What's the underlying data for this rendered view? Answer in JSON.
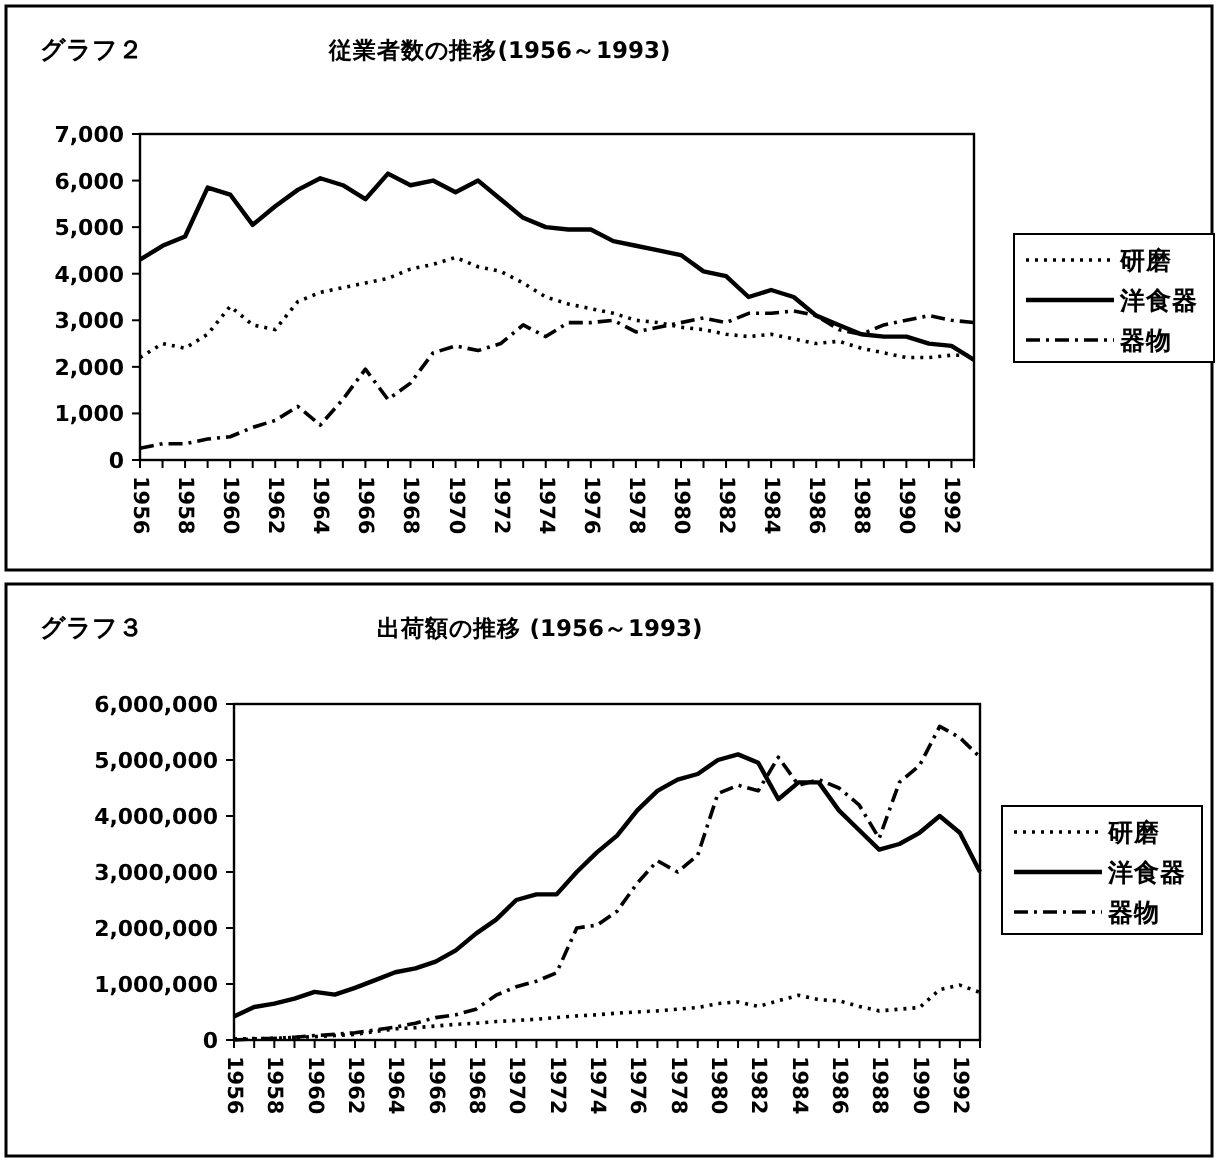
{
  "chart_data": [
    {
      "type": "line",
      "title": "従業者数の推移(1956～1993)",
      "annotations": [
        "グラフ２"
      ],
      "categories": [
        "1956",
        null,
        "1958",
        null,
        "1960",
        null,
        "1962",
        null,
        "1964",
        null,
        "1966",
        null,
        "1968",
        null,
        "1970",
        null,
        "1972",
        null,
        "1974",
        null,
        "1976",
        null,
        "1978",
        null,
        "1980",
        null,
        "1982",
        null,
        "1984",
        null,
        "1986",
        null,
        "1988",
        null,
        "1990",
        null,
        "1992",
        null
      ],
      "ylim": [
        0,
        7000
      ],
      "yticks": [
        {
          "value": 0,
          "label": "0"
        },
        {
          "value": 1000,
          "label": "1,000"
        },
        {
          "value": 2000,
          "label": "2,000"
        },
        {
          "value": 3000,
          "label": "3,000"
        },
        {
          "value": 4000,
          "label": "4,000"
        },
        {
          "value": 5000,
          "label": "5,000"
        },
        {
          "value": 6000,
          "label": "6,000"
        },
        {
          "value": 7000,
          "label": "7,000"
        }
      ],
      "legend": "right",
      "grid": false,
      "series": [
        {
          "name": "研磨",
          "color": "#000000",
          "line_style": "dotted",
          "values": [
            2200,
            2500,
            2400,
            2700,
            3300,
            2900,
            2800,
            3400,
            3600,
            3700,
            3800,
            3900,
            4100,
            4200,
            4350,
            4150,
            4050,
            3800,
            3500,
            3350,
            3250,
            3150,
            3000,
            2950,
            2850,
            2800,
            2700,
            2650,
            2700,
            2600,
            2500,
            2550,
            2400,
            2300,
            2200,
            2200,
            2250,
            2250
          ]
        },
        {
          "name": "洋食器",
          "color": "#000000",
          "line_style": "solid",
          "values": [
            4300,
            4600,
            4800,
            5850,
            5700,
            5050,
            5450,
            5800,
            6050,
            5900,
            5600,
            6150,
            5900,
            6000,
            5750,
            6000,
            5600,
            5200,
            5000,
            4950,
            4950,
            4700,
            4600,
            4500,
            4400,
            4050,
            3950,
            3500,
            3650,
            3500,
            3100,
            2900,
            2700,
            2650,
            2650,
            2500,
            2450,
            2150
          ]
        },
        {
          "name": "器物",
          "color": "#000000",
          "line_style": "dashdot",
          "values": [
            250,
            350,
            350,
            450,
            500,
            700,
            850,
            1150,
            750,
            1300,
            1950,
            1300,
            1650,
            2300,
            2450,
            2350,
            2500,
            2900,
            2650,
            2950,
            2950,
            3000,
            2750,
            2850,
            2950,
            3050,
            2950,
            3150,
            3150,
            3200,
            3100,
            2800,
            2700,
            2900,
            3000,
            3100,
            3000,
            2950
          ]
        }
      ]
    },
    {
      "type": "line",
      "title": "出荷額の推移 (1956～1993)",
      "annotations": [
        "グラフ３"
      ],
      "categories": [
        "1956",
        null,
        "1958",
        null,
        "1960",
        null,
        "1962",
        null,
        "1964",
        null,
        "1966",
        null,
        "1968",
        null,
        "1970",
        null,
        "1972",
        null,
        "1974",
        null,
        "1976",
        null,
        "1978",
        null,
        "1980",
        null,
        "1982",
        null,
        "1984",
        null,
        "1986",
        null,
        "1988",
        null,
        "1990",
        null,
        "1992",
        null
      ],
      "ylim": [
        0,
        6000000
      ],
      "yticks": [
        {
          "value": 0,
          "label": "0"
        },
        {
          "value": 1000000,
          "label": "1,000,000"
        },
        {
          "value": 2000000,
          "label": "2,000,000"
        },
        {
          "value": 3000000,
          "label": "3,000,000"
        },
        {
          "value": 4000000,
          "label": "4,000,000"
        },
        {
          "value": 5000000,
          "label": "5,000,000"
        },
        {
          "value": 6000000,
          "label": "6,000,000"
        }
      ],
      "legend": "right",
      "grid": false,
      "series": [
        {
          "name": "研磨",
          "color": "#000000",
          "line_style": "dotted",
          "values": [
            20000,
            25000,
            30000,
            45000,
            60000,
            80000,
            100000,
            150000,
            200000,
            220000,
            250000,
            280000,
            300000,
            330000,
            350000,
            370000,
            400000,
            430000,
            450000,
            480000,
            500000,
            520000,
            550000,
            580000,
            650000,
            680000,
            600000,
            700000,
            800000,
            720000,
            700000,
            600000,
            520000,
            550000,
            580000,
            900000,
            980000,
            850000
          ]
        },
        {
          "name": "洋食器",
          "color": "#000000",
          "line_style": "solid",
          "values": [
            420000,
            590000,
            650000,
            740000,
            860000,
            810000,
            930000,
            1070000,
            1210000,
            1280000,
            1400000,
            1600000,
            1900000,
            2150000,
            2500000,
            2600000,
            2600000,
            3000000,
            3350000,
            3650000,
            4100000,
            4450000,
            4650000,
            4750000,
            5000000,
            5100000,
            4950000,
            4300000,
            4600000,
            4600000,
            4100000,
            3750000,
            3400000,
            3500000,
            3700000,
            4000000,
            3700000,
            3000000
          ]
        },
        {
          "name": "器物",
          "color": "#000000",
          "line_style": "dashdot",
          "values": [
            0,
            20000,
            30000,
            50000,
            80000,
            100000,
            130000,
            180000,
            230000,
            300000,
            400000,
            450000,
            550000,
            800000,
            950000,
            1050000,
            1200000,
            2000000,
            2050000,
            2300000,
            2800000,
            3200000,
            3000000,
            3300000,
            4400000,
            4550000,
            4450000,
            5050000,
            4550000,
            4650000,
            4500000,
            4200000,
            3600000,
            4600000,
            4900000,
            5600000,
            5400000,
            5050000
          ]
        }
      ]
    }
  ]
}
